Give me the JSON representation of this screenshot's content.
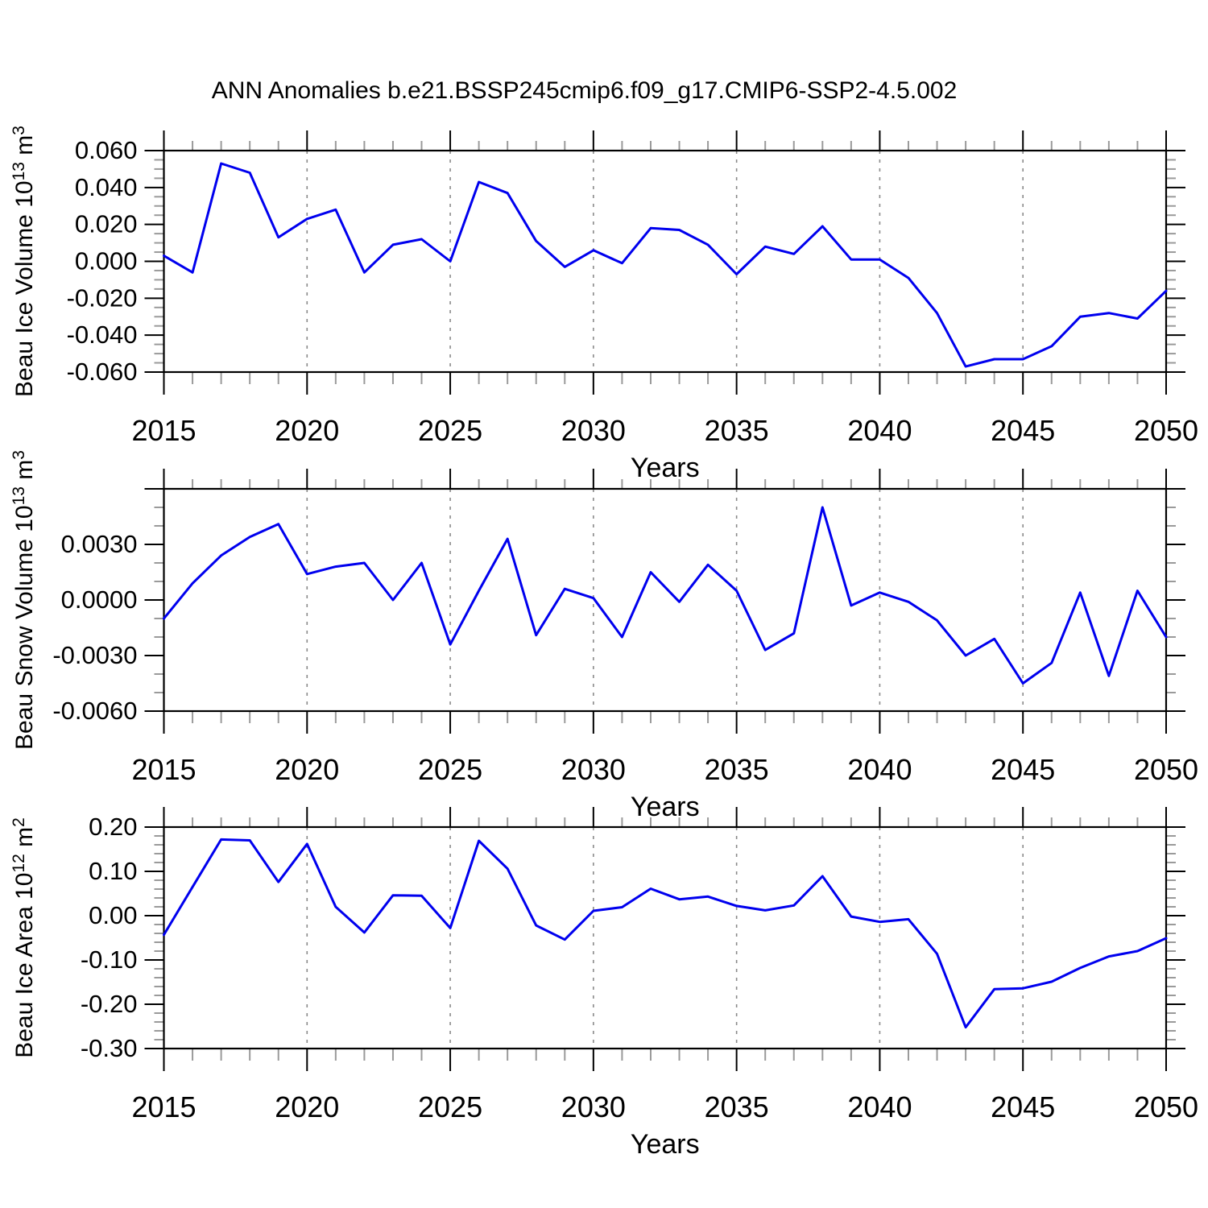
{
  "title": "ANN Anomalies b.e21.BSSP245cmip6.f09_g17.CMIP6-SSP2-4.5.002",
  "chart_data": {
    "type": "line",
    "x_label": "Years",
    "line_color": "#0000EE",
    "grid_color": "#8a8a8a",
    "years": [
      2015,
      2016,
      2017,
      2018,
      2019,
      2020,
      2021,
      2022,
      2023,
      2024,
      2025,
      2026,
      2027,
      2028,
      2029,
      2030,
      2031,
      2032,
      2033,
      2034,
      2035,
      2036,
      2037,
      2038,
      2039,
      2040,
      2041,
      2042,
      2043,
      2044,
      2045,
      2046,
      2047,
      2048,
      2049,
      2050
    ],
    "x_major_ticks": [
      2015,
      2020,
      2025,
      2030,
      2035,
      2040,
      2045,
      2050
    ],
    "x_tick_labels": [
      "2015",
      "2020",
      "2025",
      "2030",
      "2035",
      "2040",
      "2045",
      "2050"
    ],
    "grid_years": [
      2020,
      2025,
      2030,
      2035,
      2040,
      2045
    ],
    "xlim": [
      2015,
      2050
    ],
    "grid": "vertical-dashed",
    "legend": "none",
    "panels": [
      {
        "name": "ice-volume",
        "ylabel_text": "Beau Ice Volume 10^13 m^3",
        "ylabel_segments": [
          {
            "t": "Beau Ice Volume 10"
          },
          {
            "t": "13",
            "sup": true
          },
          {
            "t": " m"
          },
          {
            "t": "3",
            "sup": true
          }
        ],
        "ylim": [
          -0.06,
          0.06
        ],
        "y_minor_step": 0.005,
        "yticks": [
          {
            "v": 0.06,
            "label": "0.060"
          },
          {
            "v": 0.04,
            "label": "0.040"
          },
          {
            "v": 0.02,
            "label": "0.020"
          },
          {
            "v": 0.0,
            "label": "0.000"
          },
          {
            "v": -0.02,
            "label": "-0.020"
          },
          {
            "v": -0.04,
            "label": "-0.040"
          },
          {
            "v": -0.06,
            "label": "-0.060"
          }
        ],
        "values": [
          0.003,
          -0.006,
          0.053,
          0.048,
          0.013,
          0.023,
          0.028,
          -0.006,
          0.009,
          0.012,
          0.0,
          0.043,
          0.037,
          0.011,
          -0.003,
          0.006,
          -0.001,
          0.018,
          0.017,
          0.009,
          -0.007,
          0.008,
          0.004,
          0.019,
          0.001,
          0.001,
          -0.009,
          -0.028,
          -0.057,
          -0.053,
          -0.053,
          -0.046,
          -0.03,
          -0.028,
          -0.031,
          -0.016
        ]
      },
      {
        "name": "snow-volume",
        "ylabel_text": "Beau Snow Volume 10^13 m^3",
        "ylabel_segments": [
          {
            "t": "Beau Snow Volume 10"
          },
          {
            "t": "13",
            "sup": true
          },
          {
            "t": " m"
          },
          {
            "t": "3",
            "sup": true
          }
        ],
        "ylim": [
          -0.006,
          0.006
        ],
        "y_minor_step": 0.001,
        "yticks": [
          {
            "v": 0.006,
            "label": ""
          },
          {
            "v": 0.003,
            "label": "0.0030"
          },
          {
            "v": 0.0,
            "label": "0.0000"
          },
          {
            "v": -0.003,
            "label": "-0.0030"
          },
          {
            "v": -0.006,
            "label": "-0.0060"
          }
        ],
        "values": [
          -0.001,
          0.0009,
          0.0024,
          0.0034,
          0.0041,
          0.0014,
          0.0018,
          0.002,
          0.0,
          0.002,
          -0.0024,
          0.0005,
          0.0033,
          -0.0019,
          0.0006,
          0.0001,
          -0.002,
          0.0015,
          -0.0001,
          0.0019,
          0.0005,
          -0.0027,
          -0.0018,
          0.005,
          -0.0003,
          0.0004,
          -0.0001,
          -0.0011,
          -0.003,
          -0.0021,
          -0.0045,
          -0.0034,
          0.0004,
          -0.0041,
          0.0005,
          -0.002
        ]
      },
      {
        "name": "ice-area",
        "ylabel_text": "Beau Ice Area 10^12 m^2",
        "ylabel_segments": [
          {
            "t": "Beau Ice Area 10"
          },
          {
            "t": "12",
            "sup": true
          },
          {
            "t": " m"
          },
          {
            "t": "2",
            "sup": true
          }
        ],
        "ylim": [
          -0.3,
          0.2
        ],
        "y_minor_step": 0.02,
        "yticks": [
          {
            "v": 0.2,
            "label": "0.20"
          },
          {
            "v": 0.1,
            "label": "0.10"
          },
          {
            "v": 0.0,
            "label": "0.00"
          },
          {
            "v": -0.1,
            "label": "-0.10"
          },
          {
            "v": -0.2,
            "label": "-0.20"
          },
          {
            "v": -0.3,
            "label": "-0.30"
          }
        ],
        "values": [
          -0.043,
          0.065,
          0.172,
          0.17,
          0.076,
          0.162,
          0.02,
          -0.038,
          0.046,
          0.045,
          -0.028,
          0.169,
          0.106,
          -0.022,
          -0.054,
          0.011,
          0.019,
          0.061,
          0.037,
          0.043,
          0.022,
          0.012,
          0.023,
          0.089,
          -0.002,
          -0.014,
          -0.008,
          -0.086,
          -0.252,
          -0.166,
          -0.164,
          -0.149,
          -0.118,
          -0.092,
          -0.08,
          -0.051
        ]
      }
    ]
  }
}
